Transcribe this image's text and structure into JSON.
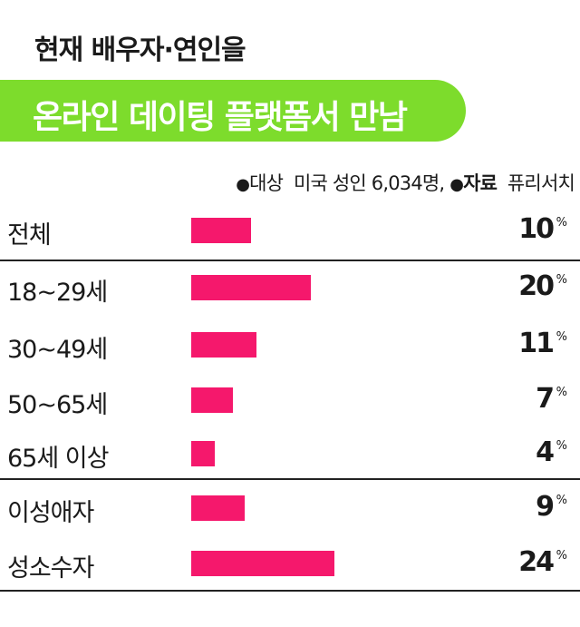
{
  "header": {
    "title_line1": "현재 배우자·연인을",
    "title_line2": "온라인 데이팅 플랫폼서 만남"
  },
  "source": {
    "target_label": "대상",
    "target_value": "미국 성인 6,034명,",
    "source_label": "자료",
    "source_value": "퓨리서치",
    "bullet": "●"
  },
  "colors": {
    "bar": "#f5186c",
    "title_bg": "#7ddc2c"
  },
  "chart_data": {
    "type": "bar",
    "orientation": "horizontal",
    "unit": "%",
    "categories": [
      "전체",
      "18~29세",
      "30~49세",
      "50~65세",
      "65세 이상",
      "이성애자",
      "성소수자"
    ],
    "values": [
      10,
      20,
      11,
      7,
      4,
      9,
      24
    ],
    "value_labels": [
      "10",
      "20",
      "11",
      "7",
      "4",
      "9",
      "24"
    ],
    "xlim": [
      0,
      24
    ],
    "grid": false,
    "legend": "none"
  }
}
